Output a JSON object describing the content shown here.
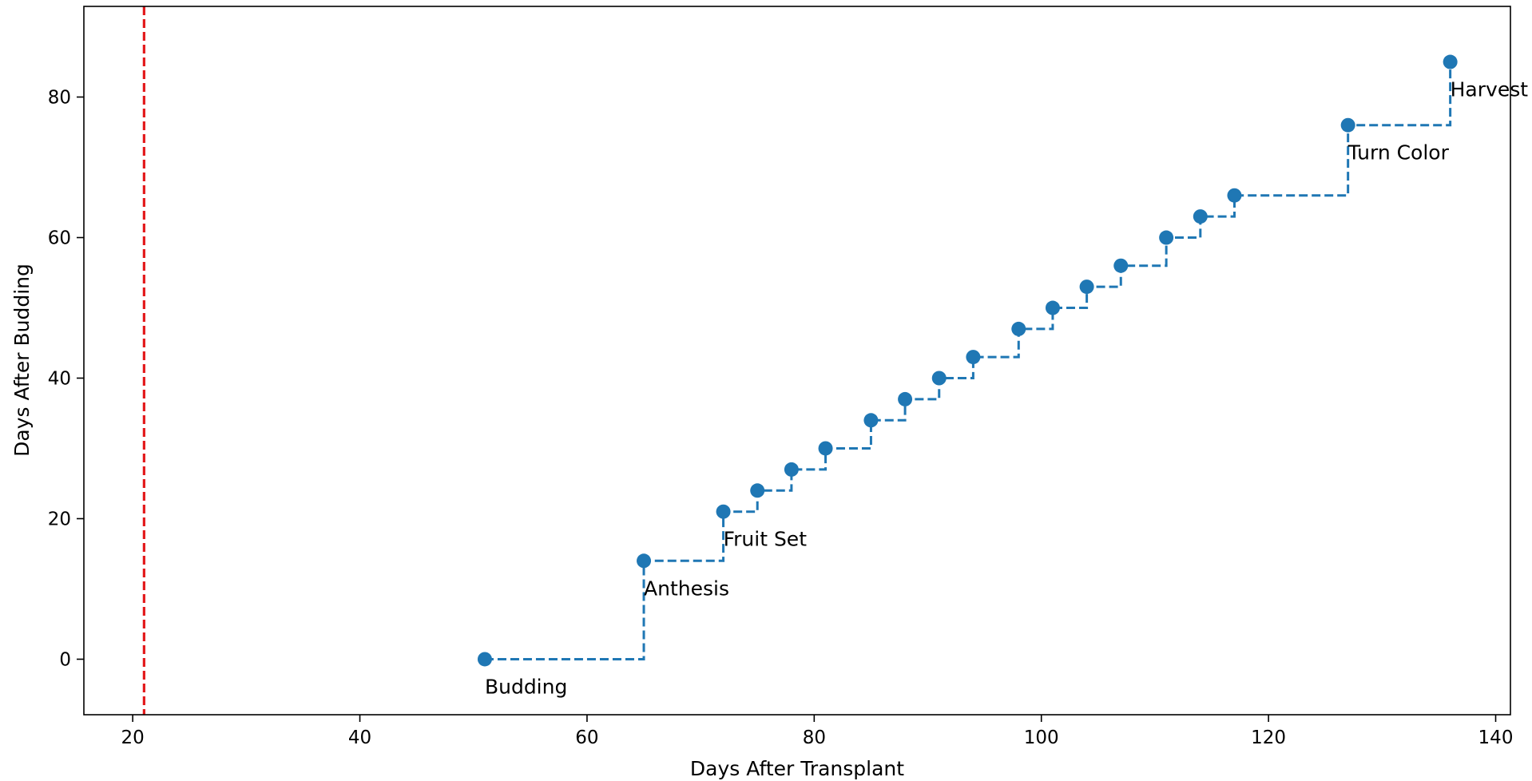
{
  "chart_data": {
    "type": "line",
    "title": "",
    "xlabel": "Days After Transplant",
    "ylabel": "Days After Budding",
    "xlim": [
      15.7,
      141.3
    ],
    "ylim": [
      -7.9,
      92.9
    ],
    "xticks": [
      20,
      40,
      60,
      80,
      100,
      120,
      140
    ],
    "yticks": [
      0,
      20,
      40,
      60,
      80
    ],
    "grid": false,
    "legend": "none",
    "step": "post",
    "line_style": "dashed",
    "series_color": "#1f77b4",
    "series": [
      {
        "x": [
          51,
          65,
          72,
          75,
          78,
          81,
          85,
          88,
          91,
          94,
          98,
          101,
          104,
          107,
          111,
          114,
          117,
          127,
          136
        ],
        "y": [
          0,
          14,
          21,
          24,
          27,
          30,
          34,
          37,
          40,
          43,
          47,
          50,
          53,
          56,
          60,
          63,
          66,
          76,
          85
        ]
      }
    ],
    "vline": {
      "x": 21,
      "color": "#e31a1c",
      "style": "dashed"
    },
    "annotations": [
      {
        "text": "Budding",
        "x": 51,
        "y": 0
      },
      {
        "text": "Anthesis",
        "x": 65,
        "y": 14
      },
      {
        "text": "Fruit Set",
        "x": 72,
        "y": 21
      },
      {
        "text": "Turn Color",
        "x": 127,
        "y": 76
      },
      {
        "text": "Harvest",
        "x": 136,
        "y": 85
      }
    ]
  }
}
